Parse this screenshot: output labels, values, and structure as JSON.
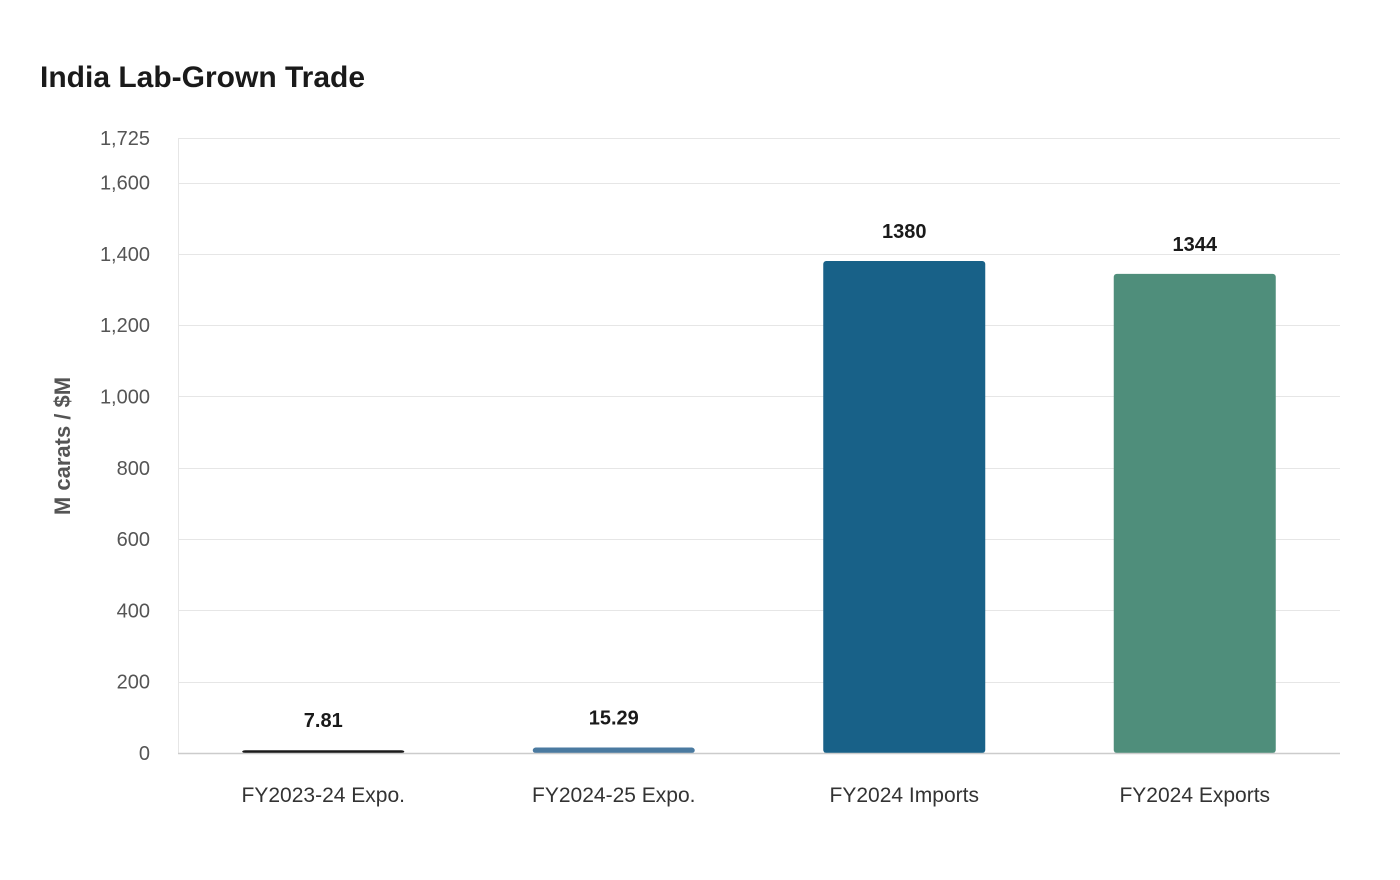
{
  "chart_data": {
    "type": "bar",
    "title": "India Lab-Grown Trade",
    "xlabel": "",
    "ylabel": "M carats / $M",
    "categories": [
      "FY2023-24 Expo.",
      "FY2024-25 Expo.",
      "FY2024 Imports",
      "FY2024 Exports"
    ],
    "values": [
      7.81,
      15.29,
      1380,
      1344
    ],
    "value_labels": [
      "7.81",
      "15.29",
      "1380",
      "1344"
    ],
    "colors": [
      "#1a1a1a",
      "#4a7aa0",
      "#186188",
      "#4f8e7b"
    ],
    "ylim": [
      0,
      1725
    ],
    "y_ticks": [
      0,
      200,
      400,
      600,
      800,
      1000,
      1200,
      1400,
      1600,
      1725
    ],
    "y_tick_labels": [
      "0",
      "200",
      "400",
      "600",
      "800",
      "1,000",
      "1,200",
      "1,400",
      "1,600",
      "1,725"
    ],
    "grid": true,
    "legend": "none"
  }
}
